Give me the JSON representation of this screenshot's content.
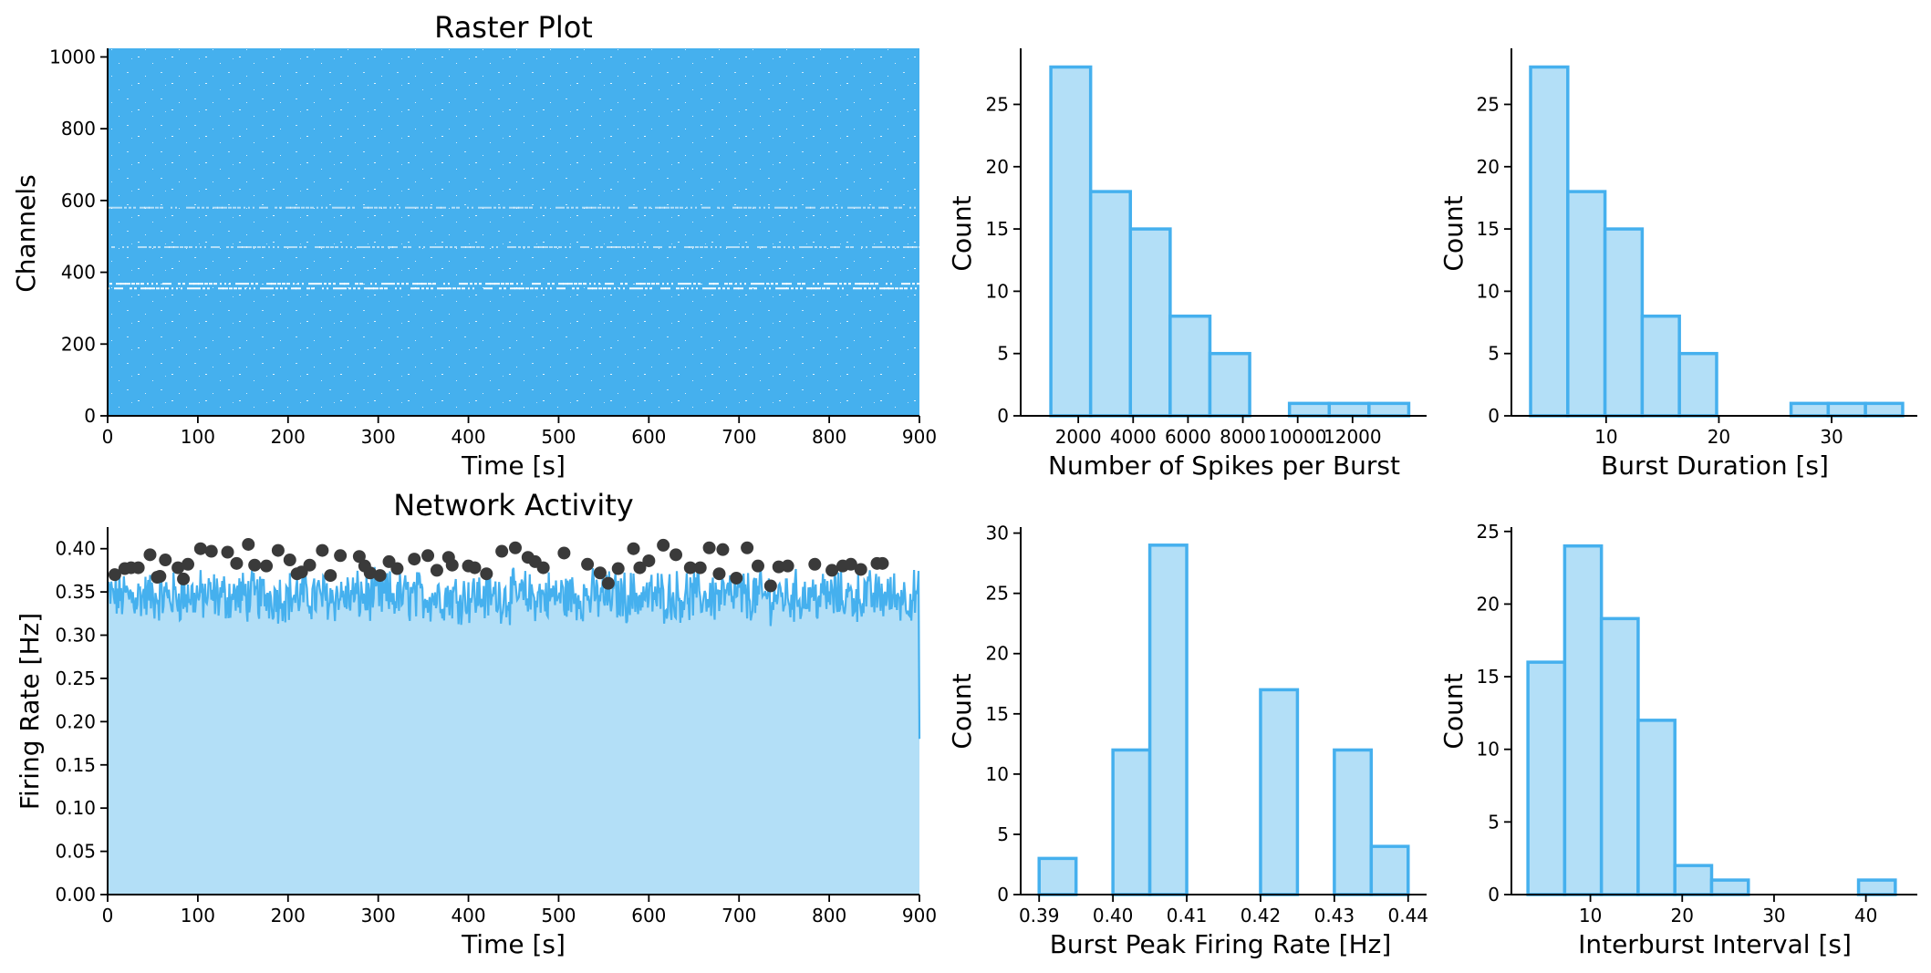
{
  "colors": {
    "accent": "#45b0ee",
    "fill_light": "#b3dff7",
    "peak_marker": "#3a3a3a"
  },
  "chart_data": [
    {
      "id": "raster",
      "type": "scatter",
      "title": "Raster Plot",
      "xlabel": "Time [s]",
      "ylabel": "Channels",
      "xlim": [
        0,
        900
      ],
      "ylim": [
        0,
        1024
      ],
      "xticks": [
        0,
        100,
        200,
        300,
        400,
        500,
        600,
        700,
        800,
        900
      ],
      "yticks": [
        0,
        200,
        400,
        600,
        800,
        1000
      ],
      "sparse_channel_bands": [
        355,
        368,
        470,
        580
      ]
    },
    {
      "id": "network",
      "type": "area",
      "title": "Network Activity",
      "xlabel": "Time [s]",
      "ylabel": "Firing Rate [Hz]",
      "xlim": [
        0,
        900
      ],
      "ylim": [
        0,
        0.425
      ],
      "xticks": [
        0,
        100,
        200,
        300,
        400,
        500,
        600,
        700,
        800,
        900
      ],
      "yticks": [
        "0.00",
        "0.05",
        "0.10",
        "0.15",
        "0.20",
        "0.25",
        "0.30",
        "0.35",
        "0.40"
      ],
      "baseline_mean": 0.345,
      "final_value": 0.18,
      "peaks": {
        "x": [
          8,
          19,
          26,
          34,
          47,
          55,
          58,
          64,
          78,
          84,
          89,
          103,
          115,
          133,
          143,
          156,
          163,
          176,
          189,
          202,
          210,
          215,
          224,
          238,
          247,
          258,
          279,
          285,
          291,
          302,
          312,
          321,
          340,
          355,
          365,
          378,
          382,
          400,
          407,
          420,
          437,
          452,
          466,
          474,
          483,
          506,
          532,
          546,
          555,
          566,
          583,
          590,
          600,
          616,
          630,
          646,
          657,
          667,
          678,
          682,
          697,
          709,
          721,
          735,
          744,
          754,
          784,
          803,
          815,
          824,
          835,
          853,
          859
        ],
        "y": [
          0.37,
          0.377,
          0.378,
          0.378,
          0.393,
          0.367,
          0.368,
          0.387,
          0.378,
          0.365,
          0.382,
          0.4,
          0.397,
          0.396,
          0.383,
          0.405,
          0.381,
          0.38,
          0.398,
          0.387,
          0.371,
          0.373,
          0.381,
          0.398,
          0.369,
          0.392,
          0.391,
          0.38,
          0.372,
          0.369,
          0.385,
          0.377,
          0.388,
          0.392,
          0.375,
          0.39,
          0.381,
          0.38,
          0.378,
          0.371,
          0.397,
          0.401,
          0.39,
          0.385,
          0.378,
          0.395,
          0.382,
          0.372,
          0.36,
          0.377,
          0.4,
          0.378,
          0.386,
          0.404,
          0.393,
          0.378,
          0.378,
          0.401,
          0.371,
          0.399,
          0.366,
          0.401,
          0.38,
          0.357,
          0.379,
          0.38,
          0.382,
          0.375,
          0.38,
          0.382,
          0.376,
          0.383,
          0.383
        ]
      }
    },
    {
      "id": "spikes_per_burst",
      "type": "bar",
      "xlabel": "Number of Spikes per Burst",
      "ylabel": "Count",
      "xlim": [
        -100,
        14700
      ],
      "ylim": [
        0,
        29.5
      ],
      "xticks": [
        "2000",
        "4000",
        "6000",
        "8000",
        "10000",
        "12000"
      ],
      "xtick_values": [
        2000,
        4000,
        6000,
        8000,
        10000,
        12000
      ],
      "yticks": [
        0,
        5,
        10,
        15,
        20,
        25
      ],
      "bin_edges": [
        1000,
        2450,
        3900,
        5350,
        6800,
        8250,
        9700,
        11150,
        12600,
        14050
      ],
      "values": [
        28,
        18,
        15,
        8,
        5,
        0,
        1,
        1,
        1
      ]
    },
    {
      "id": "burst_duration",
      "type": "bar",
      "xlabel": "Burst Duration [s]",
      "ylabel": "Count",
      "xlim": [
        1.6,
        37.6
      ],
      "ylim": [
        0,
        29.5
      ],
      "xticks": [
        "10",
        "20",
        "30"
      ],
      "xtick_values": [
        10,
        20,
        30
      ],
      "yticks": [
        0,
        5,
        10,
        15,
        20,
        25
      ],
      "bin_edges": [
        3.3,
        6.6,
        9.9,
        13.2,
        16.5,
        19.8,
        23.1,
        26.4,
        29.7,
        33.0,
        36.3
      ],
      "values": [
        28,
        18,
        15,
        8,
        5,
        0,
        0,
        1,
        1,
        1
      ]
    },
    {
      "id": "burst_peak_rate",
      "type": "bar",
      "xlabel": "Burst Peak Firing Rate [Hz]",
      "ylabel": "Count",
      "xlim": [
        0.3875,
        0.4425
      ],
      "ylim": [
        0,
        30.5
      ],
      "xticks": [
        "0.39",
        "0.40",
        "0.41",
        "0.42",
        "0.43",
        "0.44"
      ],
      "xtick_values": [
        0.39,
        0.4,
        0.41,
        0.42,
        0.43,
        0.44
      ],
      "yticks": [
        0,
        5,
        10,
        15,
        20,
        25,
        30
      ],
      "bin_edges": [
        0.39,
        0.395,
        0.4,
        0.405,
        0.41,
        0.415,
        0.42,
        0.425,
        0.43,
        0.435,
        0.44
      ],
      "values": [
        3,
        0,
        12,
        29,
        0,
        0,
        17,
        0,
        12,
        4
      ]
    },
    {
      "id": "interburst_interval",
      "type": "bar",
      "xlabel": "Interburst Interval [s]",
      "ylabel": "Count",
      "xlim": [
        1.4,
        45.6
      ],
      "ylim": [
        0,
        25.3
      ],
      "xticks": [
        "10",
        "20",
        "30",
        "40"
      ],
      "xtick_values": [
        10,
        20,
        30,
        40
      ],
      "yticks": [
        0,
        5,
        10,
        15,
        20,
        25
      ],
      "bin_edges": [
        3.2,
        7.2,
        11.2,
        15.2,
        19.2,
        23.2,
        27.2,
        31.2,
        35.2,
        39.2,
        43.2
      ],
      "values": [
        16,
        24,
        19,
        12,
        2,
        1,
        0,
        0,
        0,
        1
      ]
    }
  ]
}
